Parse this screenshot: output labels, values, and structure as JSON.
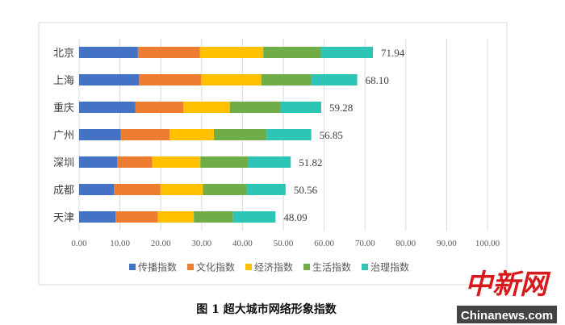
{
  "chart_data": {
    "type": "bar",
    "orientation": "horizontal",
    "stacked": true,
    "title": "",
    "caption": "图 1  超大城市网络形象指数",
    "categories": [
      "北京",
      "上海",
      "重庆",
      "广州",
      "深圳",
      "成都",
      "天津"
    ],
    "totals": [
      71.94,
      68.1,
      59.28,
      56.85,
      51.82,
      50.56,
      48.09
    ],
    "series": [
      {
        "name": "传播指数",
        "color": "#4472c4",
        "values": [
          14.4,
          14.7,
          13.8,
          10.2,
          9.3,
          8.5,
          8.9
        ]
      },
      {
        "name": "文化指数",
        "color": "#ed7d31",
        "values": [
          15.2,
          15.2,
          11.7,
          12.0,
          8.6,
          11.4,
          10.4
        ]
      },
      {
        "name": "经济指数",
        "color": "#ffc000",
        "values": [
          15.5,
          14.7,
          11.4,
          10.8,
          11.8,
          10.4,
          8.8
        ]
      },
      {
        "name": "生活指数",
        "color": "#70ad47",
        "values": [
          14.2,
          12.3,
          12.4,
          12.9,
          11.6,
          10.7,
          9.6
        ]
      },
      {
        "name": "治理指数",
        "color": "#2ec4b6",
        "values": [
          12.64,
          11.2,
          9.98,
          10.95,
          10.52,
          9.56,
          10.39
        ]
      }
    ],
    "xlim": [
      0,
      100
    ],
    "xticks": [
      "0.00",
      "10.00",
      "20.00",
      "30.00",
      "40.00",
      "50.00",
      "60.00",
      "70.00",
      "80.00",
      "90.00",
      "100.00"
    ],
    "grid": true,
    "legend_position": "bottom"
  },
  "watermark": {
    "logo_cn": "中新网",
    "logo_en": "Chinanews.com"
  }
}
